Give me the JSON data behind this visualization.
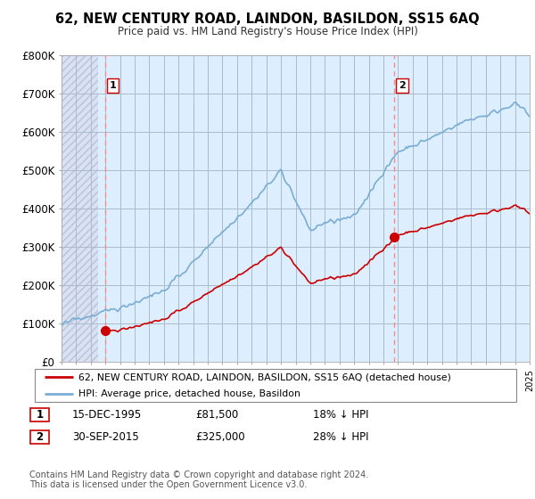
{
  "title": "62, NEW CENTURY ROAD, LAINDON, BASILDON, SS15 6AQ",
  "subtitle": "Price paid vs. HM Land Registry's House Price Index (HPI)",
  "ylim": [
    0,
    800000
  ],
  "yticks": [
    0,
    100000,
    200000,
    300000,
    400000,
    500000,
    600000,
    700000,
    800000
  ],
  "ytick_labels": [
    "£0",
    "£100K",
    "£200K",
    "£300K",
    "£400K",
    "£500K",
    "£600K",
    "£700K",
    "£800K"
  ],
  "sale1_date": 1995.96,
  "sale1_price": 81500,
  "sale1_label": "1",
  "sale2_date": 2015.75,
  "sale2_price": 325000,
  "sale2_label": "2",
  "hpi_color": "#7aadd4",
  "price_color": "#cc0000",
  "dashed_color": "#ff8888",
  "bg_color": "#ddeeff",
  "hatch_color": "#bbbbcc",
  "grid_color": "#aabbcc",
  "legend_line1": "62, NEW CENTURY ROAD, LAINDON, BASILDON, SS15 6AQ (detached house)",
  "legend_line2": "HPI: Average price, detached house, Basildon",
  "note1_date": "15-DEC-1995",
  "note1_price": "£81,500",
  "note1_hpi": "18% ↓ HPI",
  "note2_date": "30-SEP-2015",
  "note2_price": "£325,000",
  "note2_hpi": "28% ↓ HPI",
  "footer": "Contains HM Land Registry data © Crown copyright and database right 2024.\nThis data is licensed under the Open Government Licence v3.0.",
  "xmin": 1993,
  "xmax": 2025
}
